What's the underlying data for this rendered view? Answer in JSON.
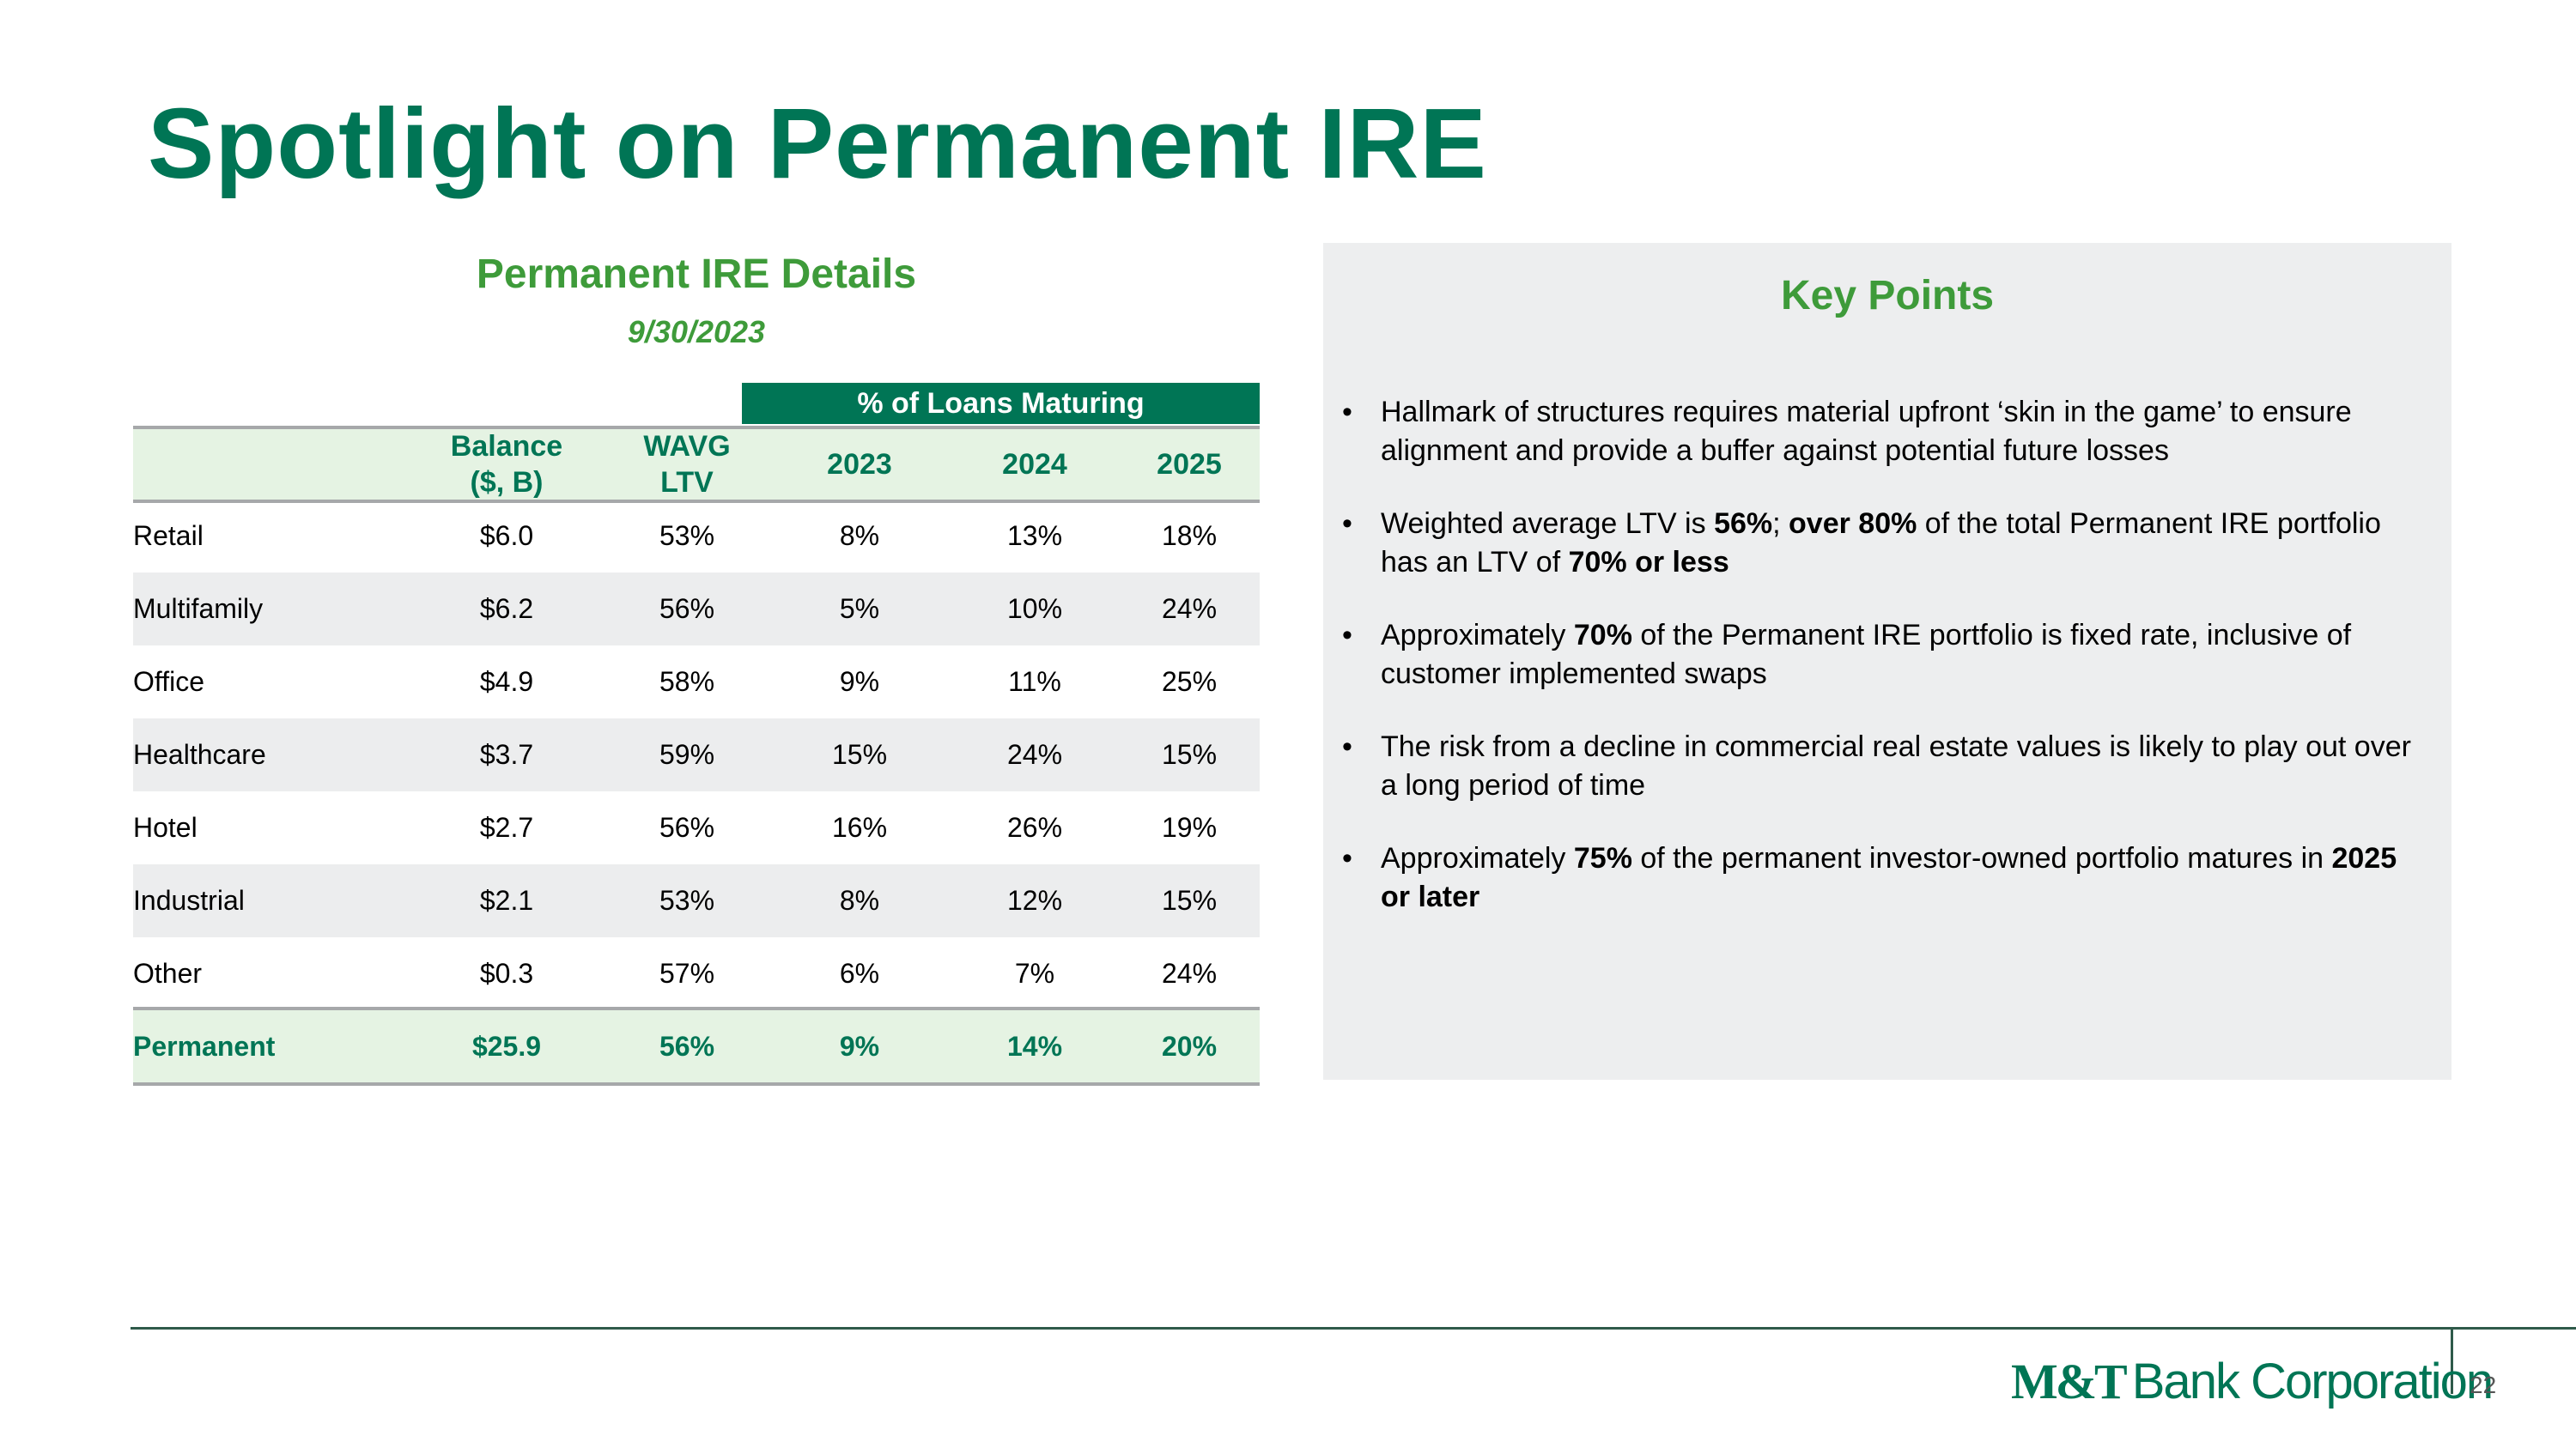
{
  "slide": {
    "title": "Spotlight on Permanent IRE",
    "page_number": "22"
  },
  "table": {
    "title": "Permanent IRE Details",
    "date": "9/30/2023",
    "group_header": "% of Loans Maturing",
    "columns": [
      "",
      "Balance\n($, B)",
      "WAVG\nLTV",
      "2023",
      "2024",
      "2025"
    ],
    "column_lines": {
      "balance_1": "Balance",
      "balance_2": "($, B)",
      "wavg_1": "WAVG",
      "wavg_2": "LTV",
      "y2023": "2023",
      "y2024": "2024",
      "y2025": "2025"
    },
    "rows": [
      {
        "category": "Retail",
        "balance": "$6.0",
        "wavg_ltv": "53%",
        "y2023": "8%",
        "y2024": "13%",
        "y2025": "18%"
      },
      {
        "category": "Multifamily",
        "balance": "$6.2",
        "wavg_ltv": "56%",
        "y2023": "5%",
        "y2024": "10%",
        "y2025": "24%"
      },
      {
        "category": "Office",
        "balance": "$4.9",
        "wavg_ltv": "58%",
        "y2023": "9%",
        "y2024": "11%",
        "y2025": "25%"
      },
      {
        "category": "Healthcare",
        "balance": "$3.7",
        "wavg_ltv": "59%",
        "y2023": "15%",
        "y2024": "24%",
        "y2025": "15%"
      },
      {
        "category": "Hotel",
        "balance": "$2.7",
        "wavg_ltv": "56%",
        "y2023": "16%",
        "y2024": "26%",
        "y2025": "19%"
      },
      {
        "category": "Industrial",
        "balance": "$2.1",
        "wavg_ltv": "53%",
        "y2023": "8%",
        "y2024": "12%",
        "y2025": "15%"
      },
      {
        "category": "Other",
        "balance": "$0.3",
        "wavg_ltv": "57%",
        "y2023": "6%",
        "y2024": "7%",
        "y2025": "24%"
      }
    ],
    "total": {
      "category": "Permanent",
      "balance": "$25.9",
      "wavg_ltv": "56%",
      "y2023": "9%",
      "y2024": "14%",
      "y2025": "20%"
    }
  },
  "key_points": {
    "title": "Key Points",
    "bullets": [
      {
        "segments": [
          {
            "text": "Hallmark of structures requires material upfront ‘skin in the game’ to ensure alignment and provide a buffer against potential future losses",
            "bold": false
          }
        ]
      },
      {
        "segments": [
          {
            "text": "Weighted average LTV is ",
            "bold": false
          },
          {
            "text": "56%",
            "bold": true
          },
          {
            "text": "; ",
            "bold": false
          },
          {
            "text": "over 80%",
            "bold": true
          },
          {
            "text": " of the total Permanent IRE portfolio has an LTV of ",
            "bold": false
          },
          {
            "text": "70% or less",
            "bold": true
          }
        ]
      },
      {
        "segments": [
          {
            "text": "Approximately ",
            "bold": false
          },
          {
            "text": "70%",
            "bold": true
          },
          {
            "text": " of the Permanent IRE portfolio is fixed rate, inclusive of customer implemented swaps",
            "bold": false
          }
        ]
      },
      {
        "segments": [
          {
            "text": "The risk from a decline in commercial real estate values is likely to play out over a long period of time",
            "bold": false
          }
        ]
      },
      {
        "segments": [
          {
            "text": "Approximately ",
            "bold": false
          },
          {
            "text": "75%",
            "bold": true
          },
          {
            "text": " of the permanent investor-owned portfolio matures in ",
            "bold": false
          },
          {
            "text": "2025 or later",
            "bold": true
          }
        ]
      }
    ],
    "bullet_glyph": "•"
  },
  "footer": {
    "logo_mark": "M&T",
    "logo_name": "Bank Corporation"
  },
  "colors": {
    "title_green": "#007555",
    "accent_green": "#3E9B3A",
    "header_fill": "#E5F3E3",
    "alt_row": "#ECEDEE",
    "panel_bg": "#EDEEEF",
    "rule_gray": "#A6A8AA"
  }
}
